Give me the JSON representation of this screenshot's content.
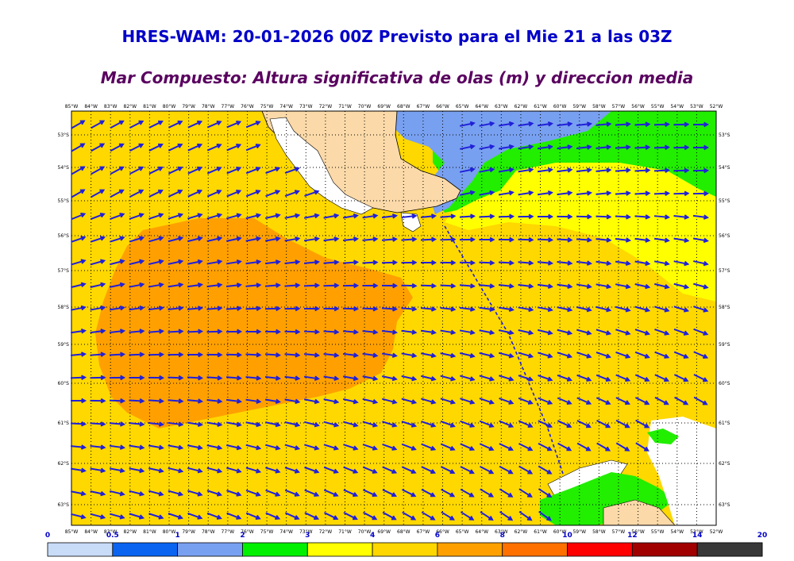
{
  "title": "HRES-WAM: 20-01-2026 00Z Previsto para el Mie 21 a las 03Z",
  "subtitle": "Mar Compuesto: Altura significativa de olas (m) y direccion media",
  "lon_labels": [
    "85°W",
    "84°W",
    "83°W",
    "82°W",
    "81°W",
    "80°W",
    "79°W",
    "78°W",
    "77°W",
    "76°W",
    "75°W",
    "74°W",
    "73°W",
    "72°W",
    "71°W",
    "70°W",
    "69°W",
    "68°W",
    "67°W",
    "66°W",
    "65°W",
    "64°W",
    "63°W",
    "62°W",
    "61°W",
    "60°W",
    "59°W",
    "58°W",
    "57°W",
    "56°W",
    "55°W",
    "54°W",
    "53°W",
    "52°W"
  ],
  "lat_labels": [
    "53°S",
    "54°S",
    "55°S",
    "56°S",
    "57°S",
    "58°S",
    "59°S",
    "60°S",
    "61°S",
    "62°S",
    "63°S"
  ],
  "colorbar": {
    "labels": [
      "0",
      "0.5",
      "1",
      "2",
      "3",
      "4",
      "6",
      "8",
      "10",
      "12",
      "14",
      "20"
    ],
    "colors": [
      "#c8dcf8",
      "#0a64f0",
      "#78a0f0",
      "#00f000",
      "#ffff00",
      "#ffd700",
      "#ffa000",
      "#ff7000",
      "#ff0000",
      "#a00000",
      "#600000",
      "#383838"
    ]
  },
  "map_colors": {
    "land": "#fbd9a8",
    "sea_2_3": "#22ee00",
    "sea_3_4": "#ffff00",
    "sea_4_6": "#ffd800",
    "sea_6_8": "#ffa000",
    "sea_1_2": "#78a0f0",
    "arrow": "#2020d8"
  }
}
